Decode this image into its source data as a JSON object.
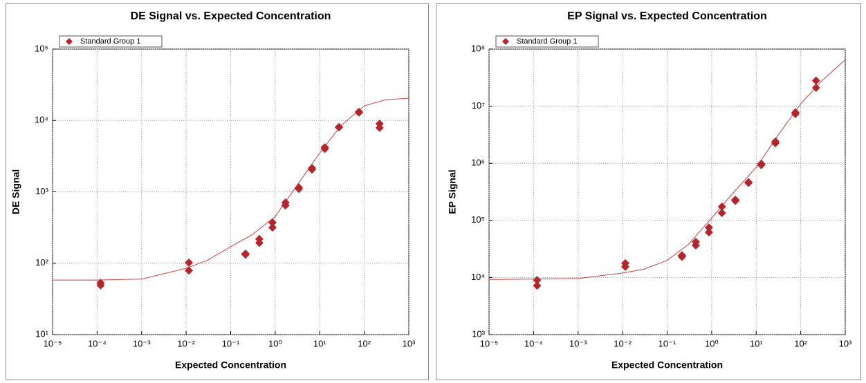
{
  "chart_data": [
    {
      "type": "scatter",
      "title": "DE Signal vs. Expected Concentration",
      "xlabel": "Expected Concentration",
      "ylabel": "DE Signal",
      "xscale": "log",
      "yscale": "log",
      "grid": true,
      "legend": "upper left",
      "xlim": [
        1e-05,
        1000
      ],
      "ylim": [
        10,
        100000
      ],
      "xticks": [
        {
          "value": 1e-05,
          "label": "10⁻⁵"
        },
        {
          "value": 0.0001,
          "label": "10⁻⁴"
        },
        {
          "value": 0.001,
          "label": "10⁻³"
        },
        {
          "value": 0.01,
          "label": "10⁻²"
        },
        {
          "value": 0.1,
          "label": "10⁻¹"
        },
        {
          "value": 1,
          "label": "10⁰"
        },
        {
          "value": 10,
          "label": "10¹"
        },
        {
          "value": 100,
          "label": "10²"
        },
        {
          "value": 1000,
          "label": "10³"
        }
      ],
      "yticks": [
        {
          "value": 10,
          "label": "10¹"
        },
        {
          "value": 100,
          "label": "10²"
        },
        {
          "value": 1000,
          "label": "10³"
        },
        {
          "value": 10000,
          "label": "10⁴"
        },
        {
          "value": 100000,
          "label": "10⁵"
        }
      ],
      "x": [
        0.00012,
        0.00012,
        0.0115,
        0.0115,
        0.215,
        0.215,
        0.44,
        0.44,
        0.87,
        0.87,
        1.7,
        1.7,
        3.4,
        3.4,
        6.7,
        6.7,
        13,
        13,
        27,
        27,
        76,
        76,
        221,
        221
      ],
      "series": [
        {
          "name": "Standard Group 1",
          "color": "#b3262b",
          "values": [
            53,
            49,
            102,
            79,
            136,
            132,
            218,
            193,
            372,
            316,
            707,
            645,
            1150,
            1100,
            2150,
            2050,
            4200,
            4000,
            8100,
            8000,
            13200,
            12900,
            9000,
            7900
          ]
        }
      ],
      "fit": {
        "color": "#c84040",
        "x": [
          1e-05,
          0.0001,
          0.001,
          0.01,
          0.03,
          0.1,
          0.3,
          1,
          3,
          10,
          30,
          100,
          300,
          1000
        ],
        "y": [
          58,
          58,
          60,
          85,
          110,
          170,
          250,
          450,
          1200,
          3500,
          8500,
          16000,
          19500,
          20500
        ]
      }
    },
    {
      "type": "scatter",
      "title": "EP Signal vs. Expected Concentration",
      "xlabel": "Expected Concentration",
      "ylabel": "EP Signal",
      "xscale": "log",
      "yscale": "log",
      "grid": true,
      "legend": "upper left",
      "xlim": [
        1e-05,
        1000
      ],
      "ylim": [
        1000,
        100000000
      ],
      "xticks": [
        {
          "value": 1e-05,
          "label": "10⁻⁵"
        },
        {
          "value": 0.0001,
          "label": "10⁻⁴"
        },
        {
          "value": 0.001,
          "label": "10⁻³"
        },
        {
          "value": 0.01,
          "label": "10⁻²"
        },
        {
          "value": 0.1,
          "label": "10⁻¹"
        },
        {
          "value": 1,
          "label": "10⁰"
        },
        {
          "value": 10,
          "label": "10¹"
        },
        {
          "value": 100,
          "label": "10²"
        },
        {
          "value": 1000,
          "label": "10³"
        }
      ],
      "yticks": [
        {
          "value": 1000,
          "label": "10³"
        },
        {
          "value": 10000,
          "label": "10⁴"
        },
        {
          "value": 100000,
          "label": "10⁵"
        },
        {
          "value": 1000000,
          "label": "10⁶"
        },
        {
          "value": 10000000,
          "label": "10⁷"
        },
        {
          "value": 100000000,
          "label": "10⁸"
        }
      ],
      "x": [
        0.00012,
        0.00012,
        0.0115,
        0.0115,
        0.215,
        0.215,
        0.44,
        0.44,
        0.87,
        0.87,
        1.7,
        1.7,
        3.4,
        3.4,
        6.7,
        6.7,
        13,
        13,
        27,
        27,
        76,
        76,
        221,
        221
      ],
      "series": [
        {
          "name": "Standard Group 1",
          "color": "#b3262b",
          "values": [
            9000,
            7200,
            17800,
            15400,
            24500,
            23000,
            42000,
            36500,
            75000,
            62000,
            174000,
            135000,
            230000,
            220000,
            465000,
            455000,
            980000,
            930000,
            2400000,
            2250000,
            7800000,
            7300000,
            28000000,
            21000000
          ]
        }
      ],
      "fit": {
        "color": "#c84040",
        "x": [
          1e-05,
          0.001,
          0.01,
          0.03,
          0.1,
          0.3,
          1,
          3,
          10,
          30,
          100,
          300,
          1000
        ],
        "y": [
          9200,
          9600,
          12000,
          14000,
          20000,
          38000,
          110000,
          300000,
          850000,
          3000000,
          11000000,
          28000000,
          65000000
        ]
      }
    }
  ]
}
